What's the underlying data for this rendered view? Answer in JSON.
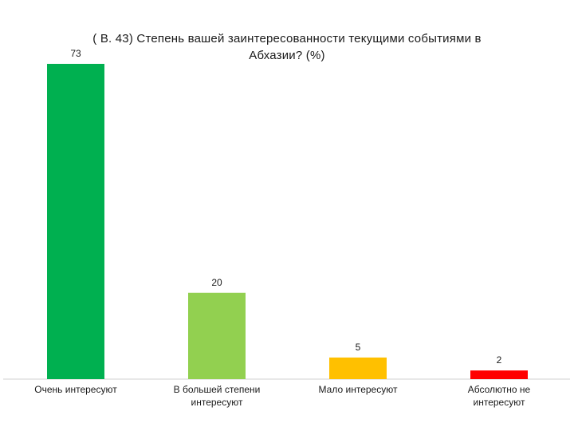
{
  "chart_data": {
    "type": "bar",
    "title_lines": [
      "( В. 43)  Степень вашей  заинтересованности  текущими событиями в",
      "Абхазии? (%)"
    ],
    "categories": [
      [
        "Очень интересуют"
      ],
      [
        "В большей степени",
        "интересуют"
      ],
      [
        "Мало интересуют"
      ],
      [
        "Абсолютно не",
        "интересуют"
      ]
    ],
    "values": [
      73,
      20,
      5,
      2
    ],
    "colors": [
      "#00b050",
      "#92d050",
      "#ffc000",
      "#ff0000"
    ],
    "ylim": [
      0,
      73
    ],
    "grid": false,
    "legend": "none"
  }
}
